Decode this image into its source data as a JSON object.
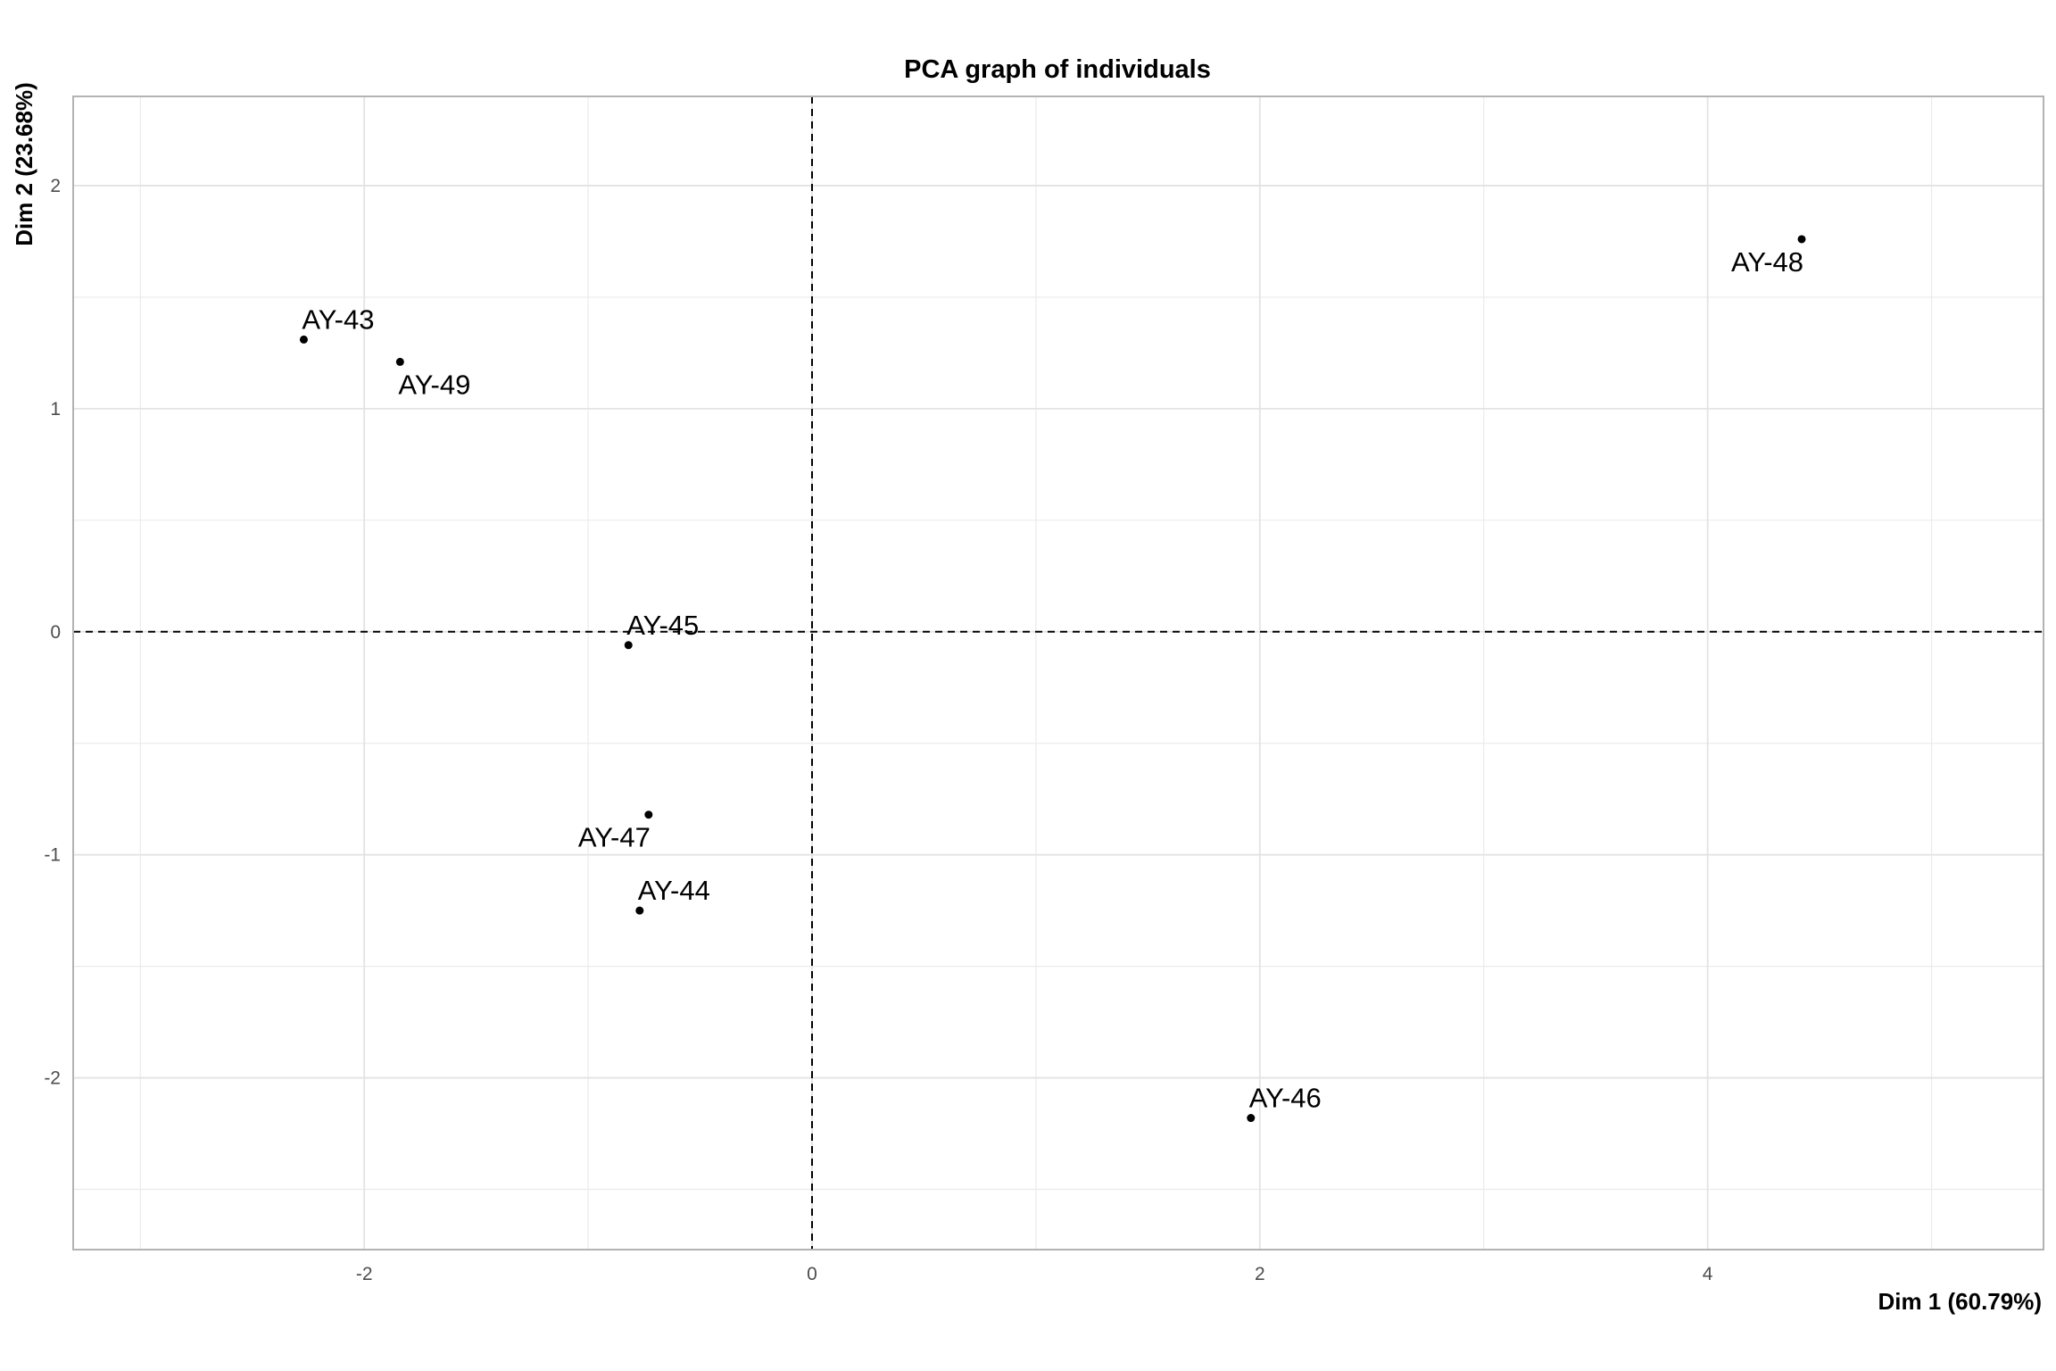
{
  "chart_data": {
    "type": "scatter",
    "title": "PCA graph of individuals",
    "xlabel": "Dim 1 (60.79%)",
    "ylabel": "Dim 2 (23.68%)",
    "xlim": [
      -3.3,
      5.5
    ],
    "ylim": [
      -2.77,
      2.4
    ],
    "xticks": [
      -2,
      0,
      2,
      4
    ],
    "yticks": [
      -2,
      -1,
      0,
      1,
      2
    ],
    "x_minor": [
      -3,
      -1,
      1,
      3,
      5
    ],
    "y_minor": [
      -2.5,
      -1.5,
      -0.5,
      0.5,
      1.5
    ],
    "grid": true,
    "reference_lines": {
      "x": 0,
      "y": 0,
      "style": "dashed"
    },
    "points": [
      {
        "label": "AY-43",
        "x": -2.27,
        "y": 1.31,
        "label_pos": "above-right"
      },
      {
        "label": "AY-49",
        "x": -1.84,
        "y": 1.21,
        "label_pos": "below-right"
      },
      {
        "label": "AY-45",
        "x": -0.82,
        "y": -0.06,
        "label_pos": "above-right"
      },
      {
        "label": "AY-47",
        "x": -0.73,
        "y": -0.82,
        "label_pos": "below-left"
      },
      {
        "label": "AY-44",
        "x": -0.77,
        "y": -1.25,
        "label_pos": "above-right"
      },
      {
        "label": "AY-46",
        "x": 1.96,
        "y": -2.18,
        "label_pos": "above-right"
      },
      {
        "label": "AY-48",
        "x": 4.42,
        "y": 1.76,
        "label_pos": "below-left"
      }
    ]
  }
}
